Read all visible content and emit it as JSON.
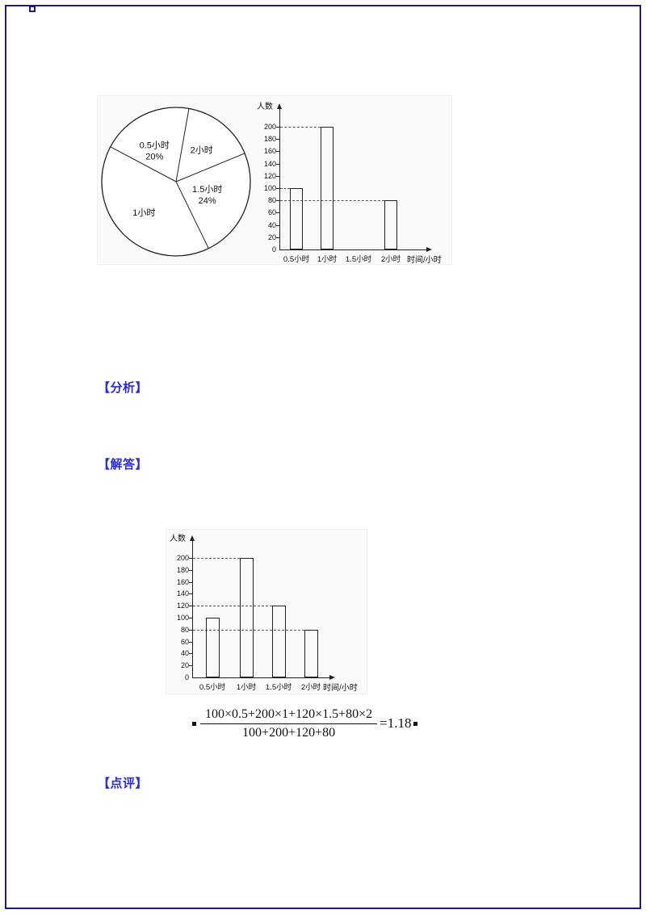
{
  "page": {
    "background": "#ffffff",
    "border_color": "#1c1c78",
    "accent_blue": "#2b2bd9"
  },
  "sections": {
    "analysis_label": "【分析】",
    "solution_label": "【解答】",
    "comment_label": "【点评】"
  },
  "formula": {
    "numerator": "100×0.5+200×1+120×1.5+80×2",
    "denominator": "100+200+120+80",
    "result": "=1.18"
  },
  "chart_data": [
    {
      "id": "pie",
      "type": "pie",
      "title": "",
      "start_angle_deg": 10,
      "slices": [
        {
          "label": "2小时",
          "lines": [
            "2小时"
          ],
          "value_pct": 16
        },
        {
          "label": "1.5小时",
          "lines": [
            "1.5小时",
            "24%"
          ],
          "value_pct": 24
        },
        {
          "label": "1小时",
          "lines": [
            "1小时"
          ],
          "value_pct": 40
        },
        {
          "label": "0.5小时",
          "lines": [
            "0.5小时",
            "20%"
          ],
          "value_pct": 20
        }
      ]
    },
    {
      "id": "bar-question",
      "type": "bar",
      "title": "",
      "ylabel": "人数",
      "xlabel": "时间/小时",
      "categories": [
        "0.5小时",
        "1小时",
        "1.5小时",
        "2小时"
      ],
      "values": [
        100,
        200,
        null,
        80
      ],
      "yticks": [
        0,
        20,
        40,
        60,
        80,
        100,
        120,
        140,
        160,
        180,
        200
      ],
      "ylim": [
        0,
        200
      ],
      "grid": false,
      "dashed_lines": [
        {
          "value": 100,
          "to_category": 0
        },
        {
          "value": 200,
          "to_category": 1
        },
        {
          "value": 80,
          "to_category": 3
        }
      ]
    },
    {
      "id": "bar-solution",
      "type": "bar",
      "title": "",
      "ylabel": "人数",
      "xlabel": "时间/小时",
      "categories": [
        "0.5小时",
        "1小时",
        "1.5小时",
        "2小时"
      ],
      "values": [
        100,
        200,
        120,
        80
      ],
      "yticks": [
        0,
        20,
        40,
        60,
        80,
        100,
        120,
        140,
        160,
        180,
        200
      ],
      "ylim": [
        0,
        200
      ],
      "grid": false,
      "dashed_lines": [
        {
          "value": 200,
          "to_category": 1
        },
        {
          "value": 120,
          "to_category": 2
        },
        {
          "value": 80,
          "to_category": 3
        }
      ]
    }
  ]
}
